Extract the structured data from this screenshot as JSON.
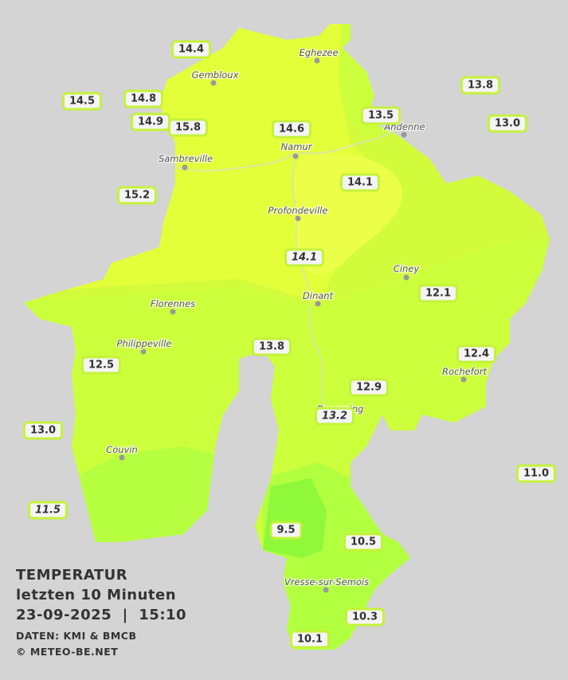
{
  "legend": {
    "title": "TEMPERATUR",
    "period": "letzten 10 Minuten",
    "datetime": "23-09-2025  |  15:10",
    "source": "DATEN: KMI & BMCB",
    "copyright": "© METEO-BE.NET"
  },
  "places": [
    "Eghezee",
    "Gembloux",
    "Andenne",
    "Namur",
    "Sambreville",
    "Profondeville",
    "Ciney",
    "Dinant",
    "Florennes",
    "Philippeville",
    "Rochefort",
    "Beauraing",
    "Couvin",
    "Vresse-sur-Semois"
  ],
  "stations": [
    "14.4",
    "14.8",
    "14.5",
    "14.9",
    "15.8",
    "14.6",
    "13.5",
    "13.8",
    "13.0",
    "15.2",
    "14.1",
    "14.1",
    "12.1",
    "13.8",
    "12.4",
    "12.5",
    "12.9",
    "13.2",
    "13.0",
    "11.0",
    "11.5",
    "9.5",
    "10.5",
    "10.3",
    "10.1"
  ]
}
